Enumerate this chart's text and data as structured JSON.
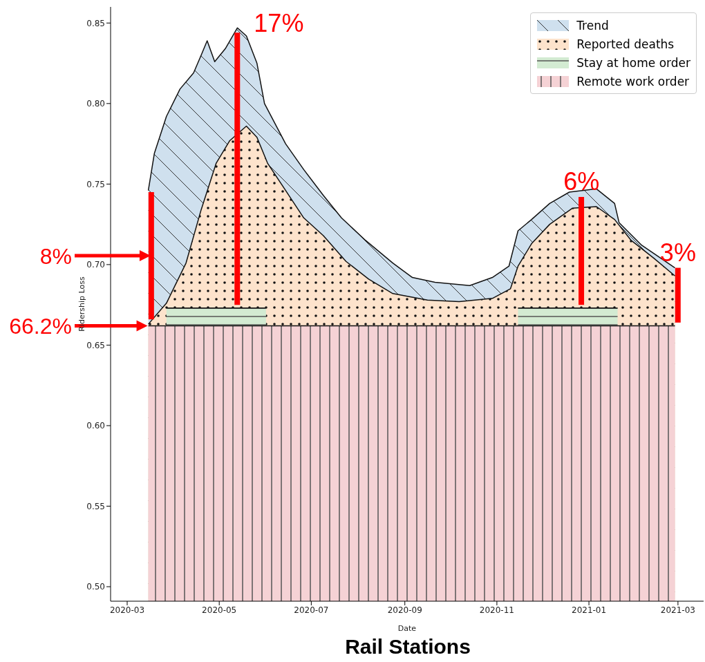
{
  "chart_data": {
    "type": "area",
    "title": "Rail Stations",
    "xlabel": "Date",
    "ylabel": "Ridership Loss",
    "xlim": [
      "2020-02-19",
      "2021-03-18"
    ],
    "xticks": [
      "2020-03",
      "2020-05",
      "2020-07",
      "2020-09",
      "2020-11",
      "2021-01",
      "2021-03"
    ],
    "ylim": [
      0.491,
      0.86
    ],
    "yticks": [
      {
        "value": 0.5,
        "label": "0.50"
      },
      {
        "value": 0.55,
        "label": "0.55"
      },
      {
        "value": 0.6,
        "label": "0.60"
      },
      {
        "value": 0.65,
        "label": "0.65"
      },
      {
        "value": 0.7,
        "label": "0.70"
      },
      {
        "value": 0.75,
        "label": "0.75"
      },
      {
        "value": 0.8,
        "label": "0.80"
      },
      {
        "value": 0.85,
        "label": "0.85"
      }
    ],
    "legend": "top right",
    "series": [
      {
        "name": "Trend",
        "color": "#cfe0ee",
        "x": [
          "2020-03-15",
          "2020-03-19",
          "2020-03-27",
          "2020-04-05",
          "2020-04-14",
          "2020-04-19",
          "2020-04-23",
          "2020-04-28",
          "2020-05-05",
          "2020-05-13",
          "2020-05-19",
          "2020-05-26",
          "2020-05-31",
          "2020-06-14",
          "2020-06-26",
          "2020-07-09",
          "2020-07-21",
          "2020-08-06",
          "2020-08-24",
          "2020-09-06",
          "2020-09-21",
          "2020-10-14",
          "2020-10-29",
          "2020-11-09",
          "2020-11-15",
          "2020-11-24",
          "2020-12-06",
          "2020-12-19",
          "2021-01-06",
          "2021-01-18",
          "2021-01-21",
          "2021-02-05",
          "2021-02-27"
        ],
        "values": [
          0.746,
          0.769,
          0.792,
          0.809,
          0.819,
          0.83,
          0.839,
          0.826,
          0.834,
          0.847,
          0.842,
          0.825,
          0.8,
          0.775,
          0.759,
          0.743,
          0.729,
          0.715,
          0.701,
          0.692,
          0.689,
          0.687,
          0.692,
          0.699,
          0.721,
          0.728,
          0.738,
          0.745,
          0.747,
          0.738,
          0.726,
          0.712,
          0.698
        ]
      },
      {
        "name": "Reported deaths",
        "color": "#fde3cc",
        "x": [
          "2020-03-15",
          "2020-03-27",
          "2020-04-09",
          "2020-04-19",
          "2020-04-29",
          "2020-05-08",
          "2020-05-19",
          "2020-05-26",
          "2020-06-02",
          "2020-06-14",
          "2020-06-26",
          "2020-07-09",
          "2020-07-24",
          "2020-08-08",
          "2020-08-24",
          "2020-09-16",
          "2020-10-07",
          "2020-10-29",
          "2020-11-10",
          "2020-11-15",
          "2020-11-24",
          "2020-12-06",
          "2020-12-21",
          "2021-01-06",
          "2021-01-18",
          "2021-01-29",
          "2021-02-13",
          "2021-02-27"
        ],
        "values": [
          0.663,
          0.676,
          0.701,
          0.734,
          0.763,
          0.777,
          0.786,
          0.779,
          0.763,
          0.746,
          0.729,
          0.718,
          0.702,
          0.691,
          0.682,
          0.678,
          0.677,
          0.679,
          0.685,
          0.699,
          0.713,
          0.725,
          0.735,
          0.736,
          0.728,
          0.715,
          0.704,
          0.693
        ]
      },
      {
        "name": "Stay at home order",
        "color": "#d3ebd2",
        "x": [
          "2020-03-27",
          "2020-06-01",
          "2020-06-02",
          "2020-11-14",
          "2020-11-15",
          "2021-01-20"
        ],
        "values": [
          0.673,
          0.673,
          null,
          null,
          0.673,
          0.673
        ]
      },
      {
        "name": "Remote work order",
        "color": "#f5d2d5",
        "x": [
          "2020-03-15",
          "2021-02-27"
        ],
        "values": [
          0.662,
          0.662
        ]
      },
      {
        "type": "bar",
        "color": "#ff0000",
        "x": [
          "2020-03-17",
          "2020-05-13",
          "2020-12-27",
          "2021-03-01"
        ],
        "base": [
          0.666,
          0.675,
          0.675,
          0.664
        ],
        "values": [
          0.079,
          0.169,
          0.067,
          0.034
        ]
      }
    ],
    "annotations": [
      "8%",
      "66.2%",
      {
        "text": "17%",
        "x": "2020-05-13",
        "y": 0.844
      },
      {
        "text": "6%",
        "x": "2020-12-27",
        "y": 0.742
      },
      {
        "text": "3%",
        "x": "2021-03-01",
        "y": 0.698
      }
    ]
  }
}
